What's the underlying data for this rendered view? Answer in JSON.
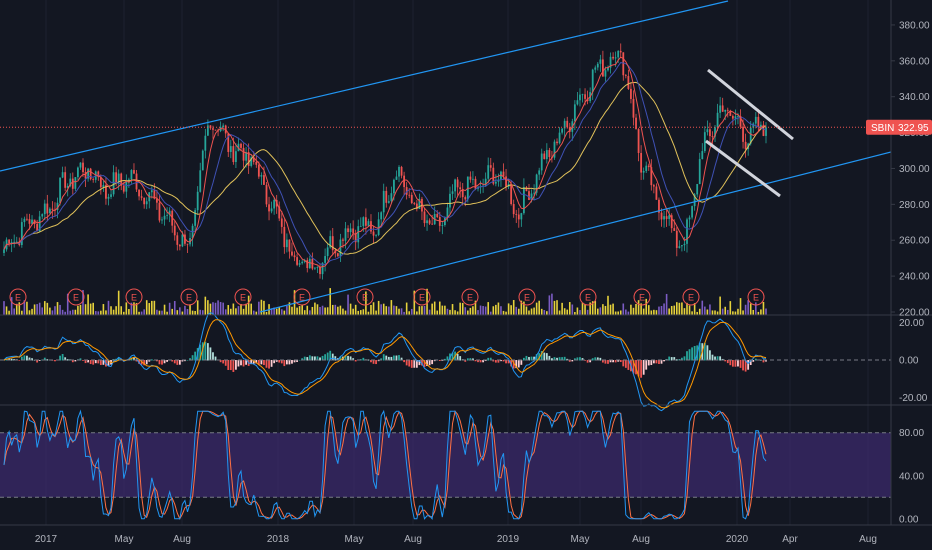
{
  "chart_data": {
    "type": "candlestick",
    "symbol": "SBIN",
    "last_price": "322.95",
    "colors": {
      "background": "#131722",
      "up": "#26a69a",
      "down": "#ef5350",
      "ma_fast": "#ef5350",
      "ma_mid": "#3f51b5",
      "ma_slow": "#e0c15a",
      "channel": "#2196f3",
      "wedge": "#d1d4dc",
      "volume": "#e6d23c",
      "macd": "#2196f3",
      "signal": "#ff9800",
      "stoch_k": "#2196f3",
      "stoch_d": "#ff7043",
      "stoch_band": "#3b2a6b"
    },
    "x_labels": [
      "2017",
      "May",
      "Aug",
      "2018",
      "May",
      "Aug",
      "2019",
      "May",
      "Aug",
      "2020",
      "Apr",
      "Aug"
    ],
    "price_axis": {
      "ticks": [
        "380.00",
        "360.00",
        "340.00",
        "320.00",
        "300.00",
        "280.00",
        "260.00",
        "240.00",
        "220.00"
      ],
      "min": 220,
      "max": 390
    },
    "macd_axis": {
      "ticks": [
        "20.00",
        "0.00",
        "-20.00"
      ],
      "min": -22,
      "max": 22
    },
    "stoch_axis": {
      "ticks": [
        "80.00",
        "40.00",
        "0.00"
      ],
      "min": -2,
      "max": 102,
      "upper_band": 80,
      "lower_band": 20
    },
    "events": [
      "E",
      "E",
      "E",
      "E",
      "E",
      "E",
      "E",
      "E",
      "E",
      "E",
      "E",
      "E",
      "E",
      "E"
    ],
    "price_series": [
      {
        "x": "2017-01",
        "y": 255
      },
      {
        "x": "2017-02",
        "y": 268
      },
      {
        "x": "2017-03",
        "y": 275
      },
      {
        "x": "2017-04",
        "y": 292
      },
      {
        "x": "2017-05",
        "y": 300
      },
      {
        "x": "2017-06",
        "y": 288
      },
      {
        "x": "2017-07",
        "y": 295
      },
      {
        "x": "2017-08",
        "y": 285
      },
      {
        "x": "2017-09",
        "y": 270
      },
      {
        "x": "2017-10",
        "y": 255
      },
      {
        "x": "2017-11",
        "y": 330
      },
      {
        "x": "2017-12",
        "y": 312
      },
      {
        "x": "2018-01",
        "y": 305
      },
      {
        "x": "2018-02",
        "y": 280
      },
      {
        "x": "2018-03",
        "y": 252
      },
      {
        "x": "2018-04",
        "y": 245
      },
      {
        "x": "2018-05",
        "y": 258
      },
      {
        "x": "2018-06",
        "y": 268
      },
      {
        "x": "2018-07",
        "y": 265
      },
      {
        "x": "2018-08",
        "y": 300
      },
      {
        "x": "2018-09",
        "y": 278
      },
      {
        "x": "2018-10",
        "y": 265
      },
      {
        "x": "2018-11",
        "y": 288
      },
      {
        "x": "2018-12",
        "y": 290
      },
      {
        "x": "2019-01",
        "y": 298
      },
      {
        "x": "2019-02",
        "y": 275
      },
      {
        "x": "2019-03",
        "y": 300
      },
      {
        "x": "2019-04",
        "y": 318
      },
      {
        "x": "2019-05",
        "y": 340
      },
      {
        "x": "2019-06",
        "y": 358
      },
      {
        "x": "2019-07",
        "y": 365
      },
      {
        "x": "2019-08",
        "y": 300
      },
      {
        "x": "2019-09",
        "y": 275
      },
      {
        "x": "2019-10",
        "y": 255
      },
      {
        "x": "2019-11",
        "y": 315
      },
      {
        "x": "2019-12",
        "y": 335
      },
      {
        "x": "2020-01",
        "y": 318
      },
      {
        "x": "2020-02",
        "y": 323
      }
    ]
  }
}
